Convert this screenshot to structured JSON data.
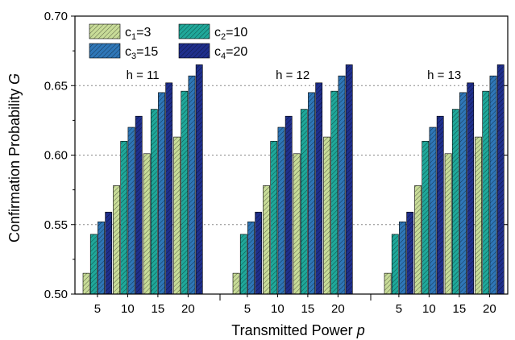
{
  "chart_data": {
    "type": "bar",
    "ylabel_text": "Confirmation Probability ",
    "ylabel_var": "G",
    "xlabel_text": "Transmitted Power ",
    "xlabel_var": "p",
    "ylim": [
      0.5,
      0.7
    ],
    "yticks": [
      "0.50",
      "0.55",
      "0.60",
      "0.65",
      "0.70"
    ],
    "ytick_values": [
      0.5,
      0.55,
      0.6,
      0.65,
      0.7
    ],
    "grid": "horizontal dotted",
    "legend_placement": "top-left",
    "categories": [
      "5",
      "10",
      "15",
      "20"
    ],
    "groups": [
      {
        "label": "h = 11"
      },
      {
        "label": "h = 12"
      },
      {
        "label": "h = 13"
      }
    ],
    "series": [
      {
        "name_sym": "c",
        "name_sub": "1",
        "name_val": "=3",
        "color": "#c8dc98",
        "values": [
          0.515,
          0.578,
          0.601,
          0.613
        ]
      },
      {
        "name_sym": "c",
        "name_sub": "2",
        "name_val": "=10",
        "color": "#1fa89a",
        "values": [
          0.543,
          0.61,
          0.633,
          0.646
        ]
      },
      {
        "name_sym": "c",
        "name_sub": "3",
        "name_val": "=15",
        "color": "#2f77b8",
        "values": [
          0.552,
          0.62,
          0.645,
          0.657
        ]
      },
      {
        "name_sym": "c",
        "name_sub": "4",
        "name_val": "=20",
        "color": "#1f2f8c",
        "values": [
          0.559,
          0.628,
          0.652,
          0.665
        ]
      }
    ]
  }
}
